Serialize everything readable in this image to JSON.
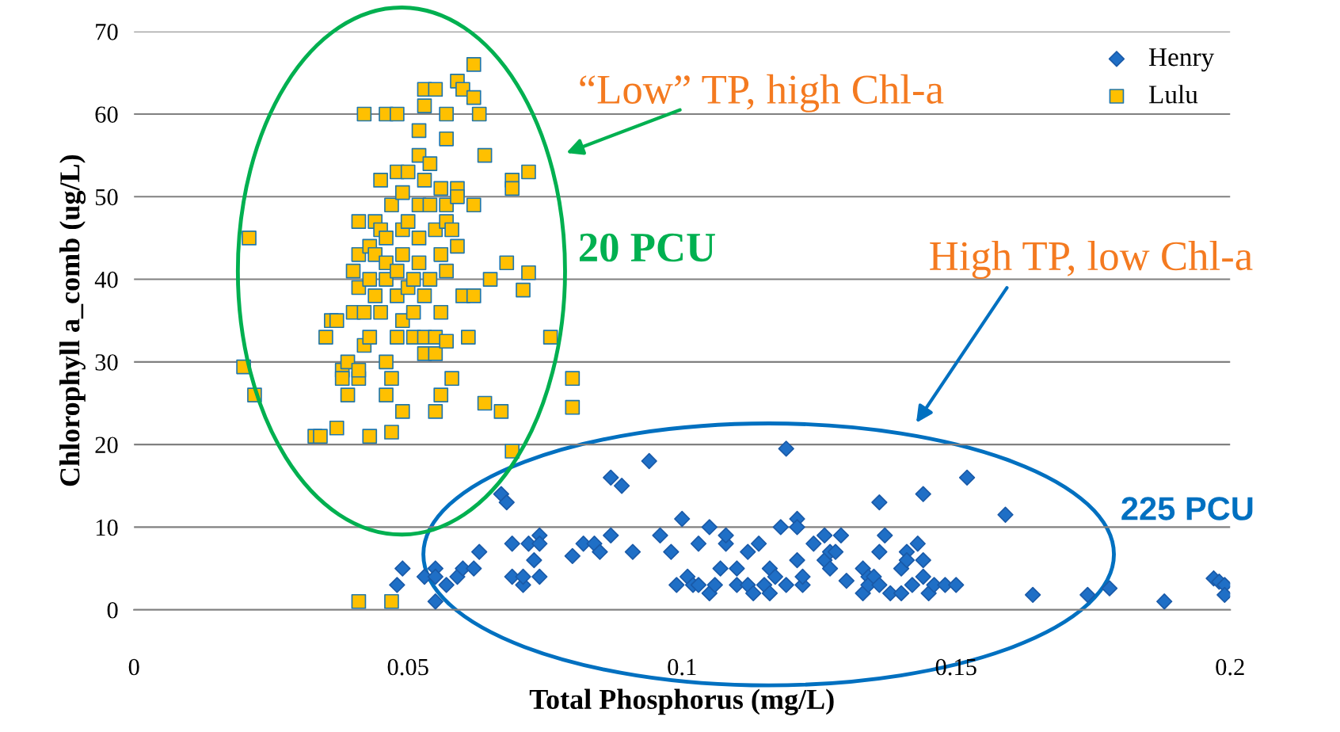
{
  "chart_data": {
    "type": "scatter",
    "xlabel": "Total Phosphorus (mg/L)",
    "ylabel": "Chlorophyll a_comb (ug/L)",
    "xlim": [
      0,
      0.2
    ],
    "xticks": [
      0,
      0.05,
      0.1,
      0.15,
      0.2
    ],
    "ylim": [
      0,
      70
    ],
    "yticks": [
      0,
      10,
      20,
      30,
      40,
      50,
      60,
      70
    ],
    "grid": "y",
    "legend": "top right",
    "annotations": [
      "“Low” TP, high Chl-a",
      "20 PCU",
      "High TP, low Chl-a",
      "225 PCU"
    ],
    "series": [
      {
        "name": "Henry",
        "color": "#1f6fc6",
        "marker": "diamond",
        "x": [
          0.048,
          0.049,
          0.053,
          0.055,
          0.055,
          0.055,
          0.057,
          0.059,
          0.06,
          0.062,
          0.063,
          0.067,
          0.068,
          0.069,
          0.069,
          0.071,
          0.071,
          0.072,
          0.073,
          0.074,
          0.074,
          0.074,
          0.08,
          0.082,
          0.084,
          0.085,
          0.087,
          0.087,
          0.089,
          0.091,
          0.094,
          0.096,
          0.098,
          0.099,
          0.1,
          0.101,
          0.102,
          0.103,
          0.103,
          0.105,
          0.105,
          0.106,
          0.107,
          0.108,
          0.108,
          0.11,
          0.11,
          0.112,
          0.112,
          0.113,
          0.114,
          0.115,
          0.116,
          0.116,
          0.117,
          0.118,
          0.119,
          0.119,
          0.121,
          0.121,
          0.121,
          0.122,
          0.122,
          0.124,
          0.126,
          0.126,
          0.127,
          0.127,
          0.128,
          0.129,
          0.13,
          0.133,
          0.133,
          0.134,
          0.134,
          0.135,
          0.136,
          0.136,
          0.136,
          0.137,
          0.138,
          0.14,
          0.14,
          0.141,
          0.141,
          0.142,
          0.143,
          0.144,
          0.144,
          0.144,
          0.145,
          0.146,
          0.148,
          0.15,
          0.152,
          0.159,
          0.164,
          0.174,
          0.178,
          0.188,
          0.197,
          0.198,
          0.199,
          0.199
        ],
        "values": [
          3,
          5,
          4,
          5,
          1,
          4,
          3,
          4,
          5,
          5,
          7,
          14,
          13,
          8,
          4,
          3,
          4,
          8,
          6,
          9,
          4,
          8,
          6.5,
          8,
          8,
          7,
          9,
          16,
          15,
          7,
          18,
          9,
          7,
          3,
          11,
          4,
          3,
          8,
          3,
          2,
          10,
          3,
          5,
          8,
          9,
          5,
          3,
          3,
          7,
          2,
          8,
          3,
          2,
          5,
          4,
          10,
          19.5,
          3,
          6,
          11,
          10,
          3,
          4,
          8,
          6,
          9,
          5,
          7,
          7,
          9,
          3.5,
          5,
          2,
          4,
          3,
          4,
          13,
          7,
          3,
          9,
          2,
          2,
          5,
          7,
          6,
          3,
          8,
          14,
          6,
          4,
          2,
          3,
          3,
          3,
          16,
          11.5,
          1.8,
          1.8,
          2.6,
          1,
          3.8,
          3.4,
          3,
          1.8
        ]
      },
      {
        "name": "Lulu",
        "color": "#ffc000",
        "marker": "square",
        "x": [
          0.02,
          0.021,
          0.022,
          0.033,
          0.034,
          0.035,
          0.036,
          0.037,
          0.037,
          0.038,
          0.038,
          0.039,
          0.039,
          0.04,
          0.04,
          0.041,
          0.041,
          0.041,
          0.041,
          0.041,
          0.041,
          0.042,
          0.042,
          0.042,
          0.043,
          0.043,
          0.043,
          0.043,
          0.044,
          0.044,
          0.044,
          0.045,
          0.045,
          0.045,
          0.046,
          0.046,
          0.046,
          0.046,
          0.046,
          0.046,
          0.047,
          0.047,
          0.047,
          0.047,
          0.048,
          0.048,
          0.048,
          0.048,
          0.048,
          0.049,
          0.049,
          0.049,
          0.049,
          0.049,
          0.05,
          0.05,
          0.05,
          0.051,
          0.051,
          0.051,
          0.052,
          0.052,
          0.052,
          0.052,
          0.052,
          0.053,
          0.053,
          0.053,
          0.053,
          0.053,
          0.053,
          0.054,
          0.054,
          0.054,
          0.055,
          0.055,
          0.055,
          0.055,
          0.055,
          0.056,
          0.056,
          0.056,
          0.056,
          0.057,
          0.057,
          0.057,
          0.057,
          0.057,
          0.057,
          0.058,
          0.058,
          0.059,
          0.059,
          0.059,
          0.059,
          0.06,
          0.06,
          0.061,
          0.062,
          0.062,
          0.062,
          0.062,
          0.063,
          0.064,
          0.064,
          0.065,
          0.067,
          0.068,
          0.069,
          0.069,
          0.069,
          0.071,
          0.072,
          0.072,
          0.076,
          0.08,
          0.08
        ],
        "values": [
          29.4,
          45,
          26,
          21,
          21,
          33,
          35,
          35,
          22,
          29,
          28,
          26,
          30,
          41,
          36,
          39,
          47,
          43,
          28,
          29,
          1,
          36,
          60,
          32,
          40,
          44,
          21,
          33,
          47,
          43,
          38,
          52,
          46,
          36,
          60,
          40,
          30,
          26,
          45,
          42,
          49,
          28,
          21.5,
          1,
          33,
          60,
          53,
          41,
          38,
          46,
          24,
          50.5,
          35,
          43,
          53,
          39,
          47,
          36,
          33,
          40,
          58,
          49,
          42,
          55,
          45,
          31,
          38,
          61,
          52,
          63,
          33,
          54,
          40,
          49,
          46,
          63,
          24,
          31,
          33,
          36,
          26,
          51,
          43,
          47,
          60,
          57,
          41,
          49,
          32.5,
          46,
          28,
          44,
          51,
          64,
          50,
          38,
          63,
          33,
          49,
          38,
          62,
          66,
          60,
          25,
          55,
          40,
          24,
          42,
          52,
          51,
          19.2,
          38.7,
          53,
          40.8,
          33,
          28,
          24.5
        ]
      }
    ]
  }
}
